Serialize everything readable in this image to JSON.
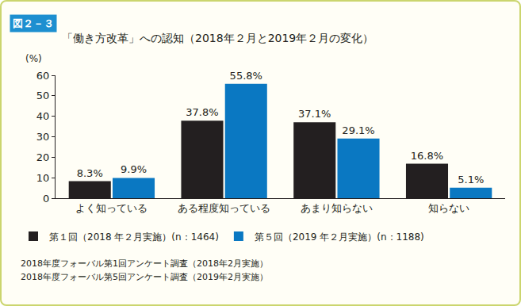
{
  "chart_data": {
    "type": "bar",
    "title": "「働き方改革」への認知（2018年２月と2019年２月の変化）",
    "ylabel": "(%)",
    "categories": [
      "よく知っている",
      "ある程度知っている",
      "あまり知らない",
      "知らない"
    ],
    "series": [
      {
        "name": "第１回（2018 年２月実施）(n：1464)",
        "color": "#231f20",
        "values": [
          8.3,
          37.8,
          37.1,
          16.8
        ],
        "value_labels": [
          "8.3%",
          "37.8%",
          "37.1%",
          "16.8%"
        ]
      },
      {
        "name": "第５回（2019 年２月実施）(n：1188)",
        "color": "#0a78c2",
        "values": [
          9.9,
          55.8,
          29.1,
          5.1
        ],
        "value_labels": [
          "9.9%",
          "55.8%",
          "29.1%",
          "5.1%"
        ]
      }
    ],
    "ylim": [
      0,
      60
    ],
    "yticks": [
      0,
      10,
      20,
      30,
      40,
      50,
      60
    ],
    "grid": false,
    "data_labels": true,
    "legend": "bottom",
    "annotations": [
      "図２－３",
      "2018年度フォーバル第1回アンケート調査（2018年2月実施）",
      "2018年度フォーバル第5回アンケート調査（2019年2月実施）"
    ]
  }
}
